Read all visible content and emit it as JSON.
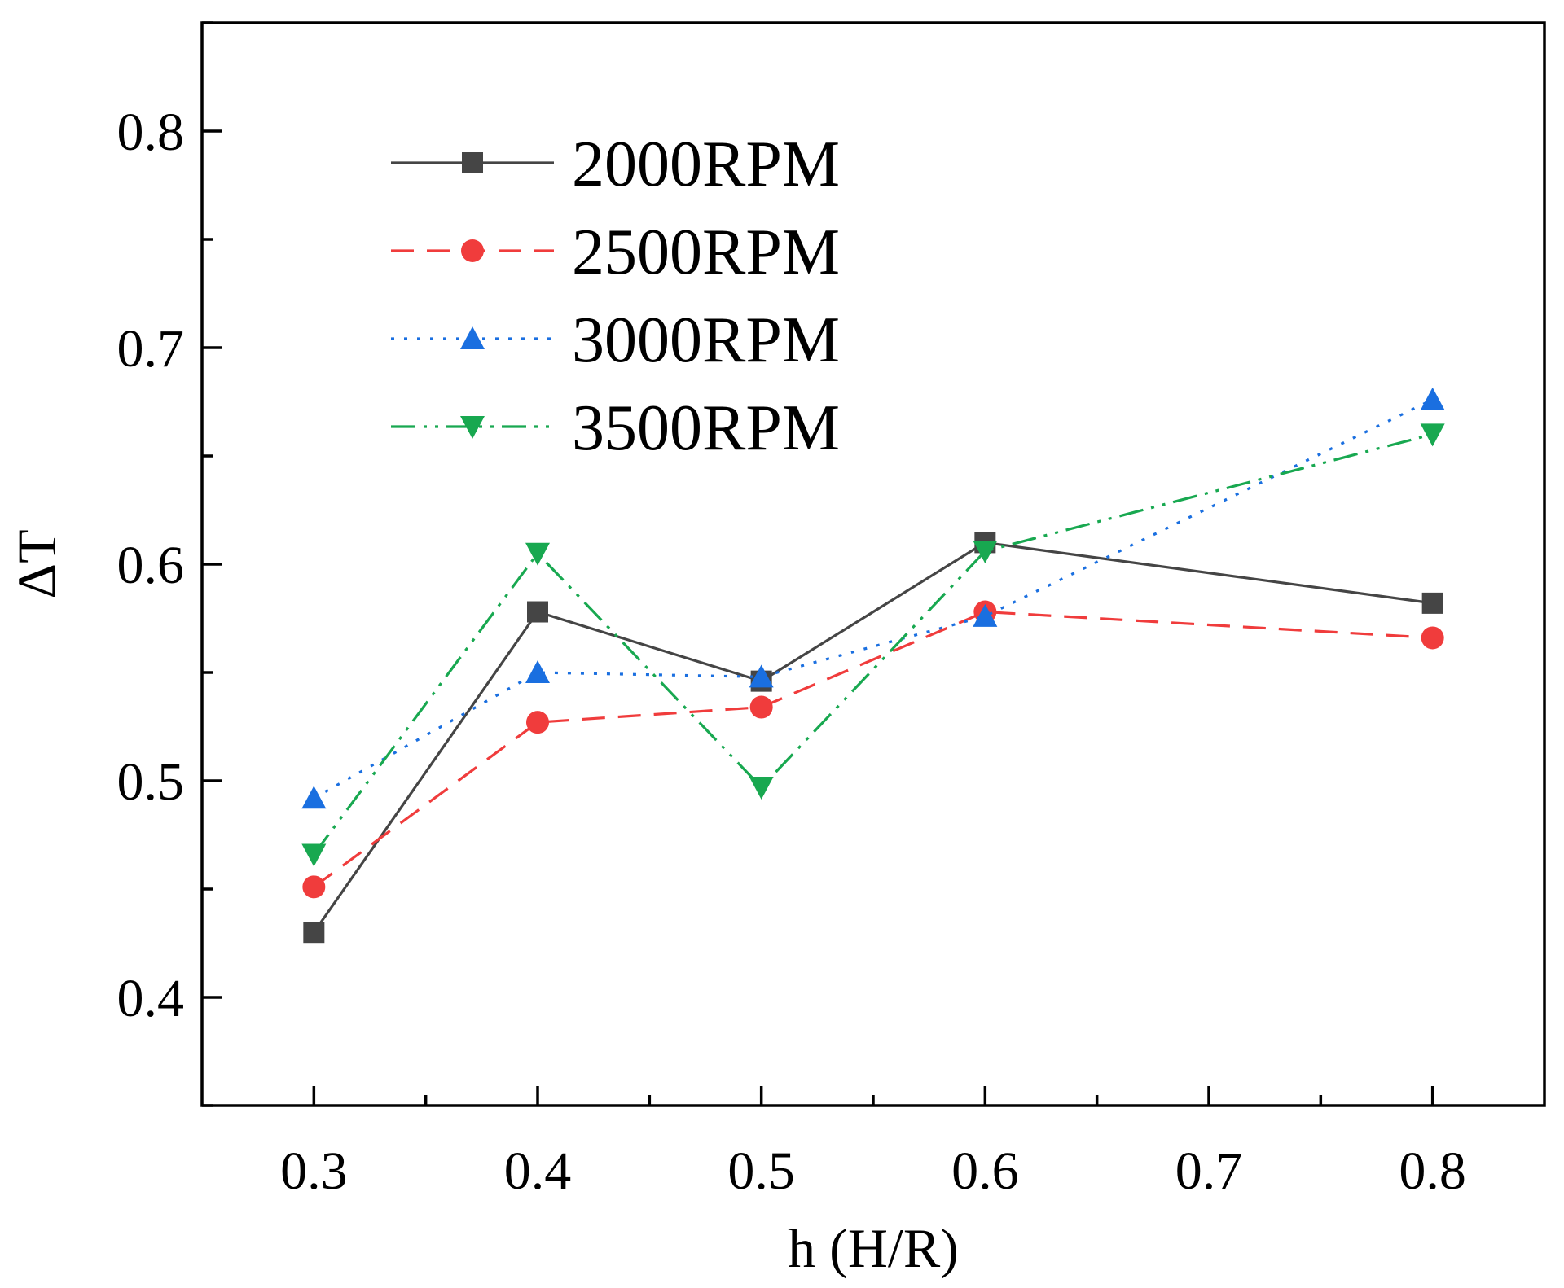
{
  "chart_data": {
    "type": "line",
    "title": "",
    "xlabel": "h (H/R)",
    "ylabel": "ΔT",
    "xlim": [
      0.25,
      0.85
    ],
    "ylim": [
      0.35,
      0.85
    ],
    "xticks": [
      0.3,
      0.4,
      0.5,
      0.6,
      0.7,
      0.8
    ],
    "xtick_labels": [
      "0.3",
      "0.4",
      "0.5",
      "0.6",
      "0.7",
      "0.8"
    ],
    "yticks": [
      0.4,
      0.5,
      0.6,
      0.7,
      0.8
    ],
    "ytick_labels": [
      "0.4",
      "0.5",
      "0.6",
      "0.7",
      "0.8"
    ],
    "grid": false,
    "legend_position": "top-left",
    "x": [
      0.3,
      0.4,
      0.5,
      0.6,
      0.8
    ],
    "series": [
      {
        "name": "2000RPM",
        "color": "#454545",
        "dash": "solid",
        "marker": "square",
        "values": [
          0.43,
          0.578,
          0.546,
          0.61,
          0.582
        ]
      },
      {
        "name": "2500RPM",
        "color": "#f03c3c",
        "dash": "dash",
        "marker": "circle",
        "values": [
          0.451,
          0.527,
          0.534,
          0.578,
          0.566
        ]
      },
      {
        "name": "3000RPM",
        "color": "#1a6fe0",
        "dash": "dot",
        "marker": "triangle-up",
        "values": [
          0.492,
          0.55,
          0.548,
          0.576,
          0.676
        ]
      },
      {
        "name": "3500RPM",
        "color": "#18a850",
        "dash": "dashdotdot",
        "marker": "triangle-down",
        "values": [
          0.466,
          0.605,
          0.497,
          0.606,
          0.66
        ]
      }
    ]
  }
}
